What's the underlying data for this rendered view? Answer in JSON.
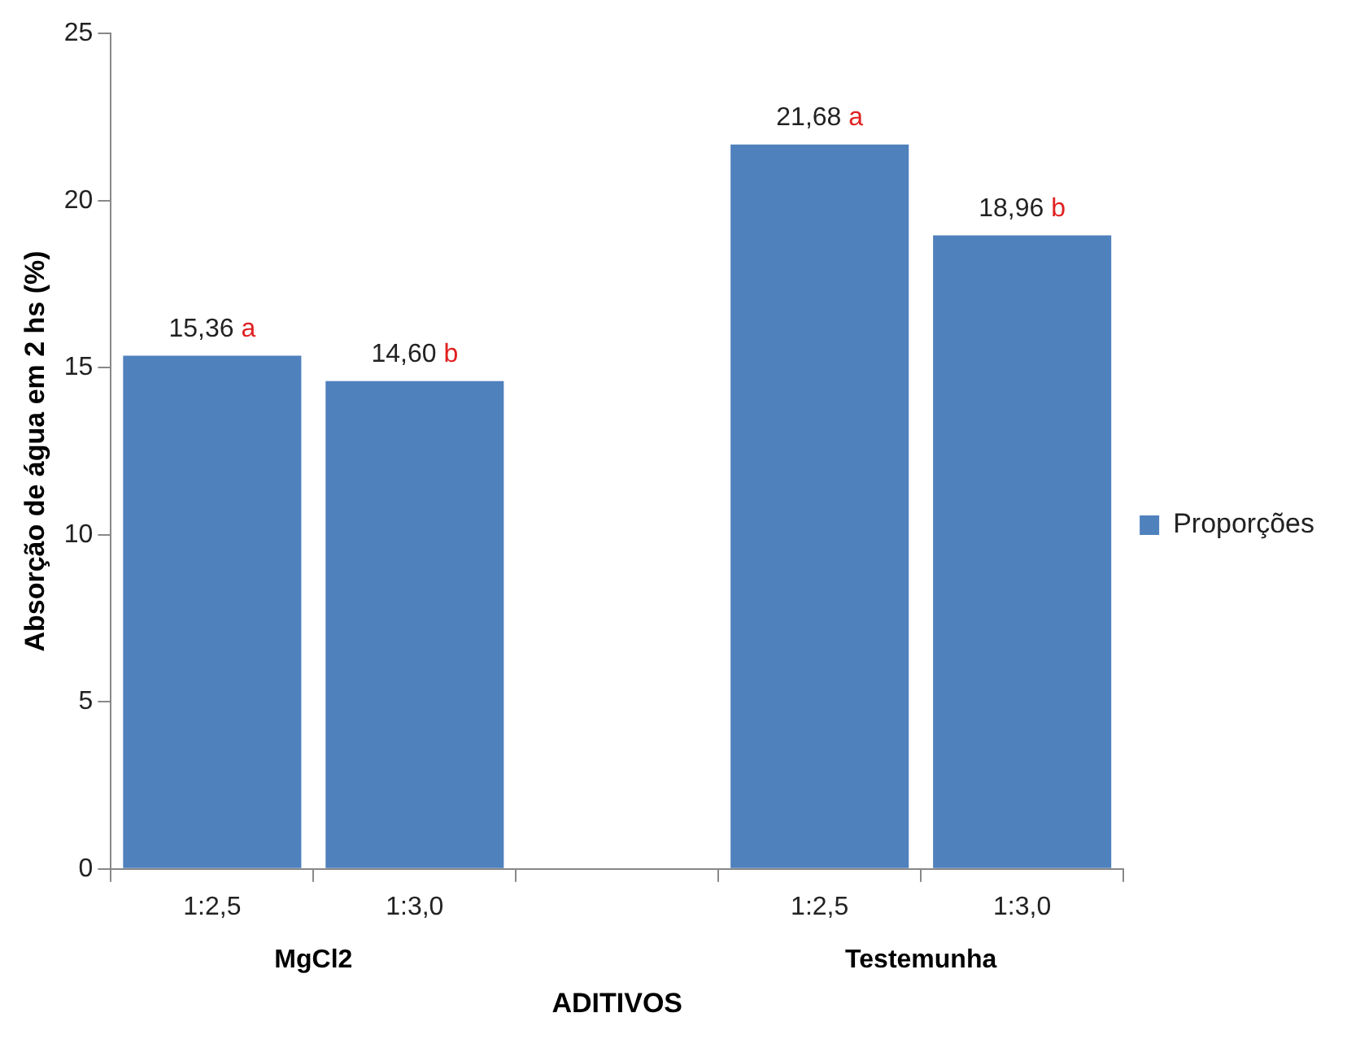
{
  "chart_data": {
    "type": "bar",
    "categories": [
      "1:2,5",
      "1:3,0",
      null,
      "1:2,5",
      "1:3,0"
    ],
    "series": [
      {
        "name": "Proporções",
        "color": "#4f81bd",
        "values": [
          15.36,
          14.6,
          null,
          21.68,
          18.96
        ],
        "value_labels": [
          "15,36 a",
          "14,60 b",
          null,
          "21,68 a",
          "18,96 b"
        ]
      }
    ],
    "ylabel": "Absorção de água em 2 hs (%)",
    "xlabel": "ADITIVOS",
    "annotations": [
      "MgCl2",
      "Testemunha"
    ],
    "ylim": [
      0,
      25
    ],
    "yticks": [
      0,
      5,
      10,
      15,
      20,
      25
    ],
    "grid": false,
    "legend": "right"
  }
}
